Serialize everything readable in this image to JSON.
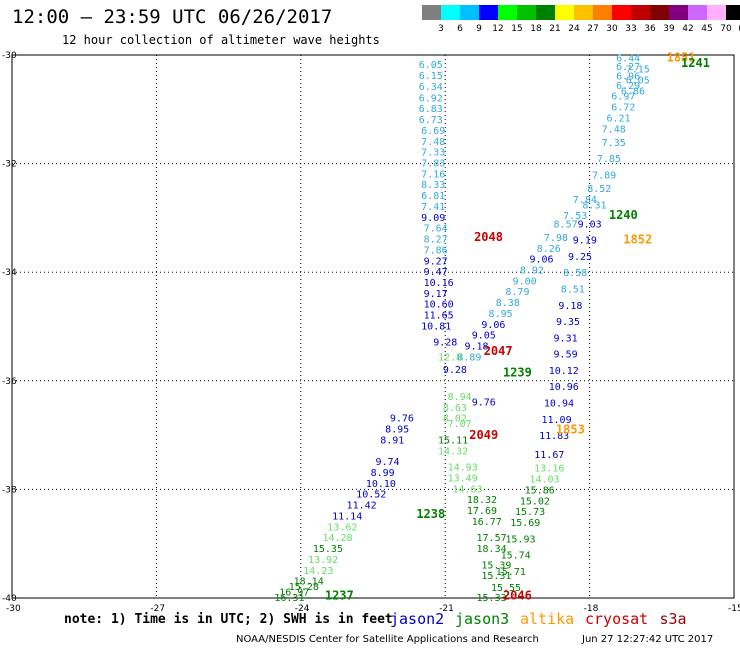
{
  "header": {
    "title": "12:00 – 23:59 UTC 06/26/2017",
    "subtitle": "12 hour collection of altimeter wave heights"
  },
  "colorbar": {
    "labels": [
      "3",
      "6",
      "9",
      "12",
      "15",
      "18",
      "21",
      "24",
      "27",
      "30",
      "33",
      "36",
      "39",
      "42",
      "45",
      "70",
      "(ft)"
    ],
    "colors": [
      "#7f7f7f",
      "#00ffff",
      "#00bfff",
      "#0000ff",
      "#00ff00",
      "#00c000",
      "#008000",
      "#ffff00",
      "#ffc000",
      "#ff8000",
      "#ff0000",
      "#c00000",
      "#800000",
      "#800080",
      "#cc66ff",
      "#ffb0ff",
      "#000000"
    ]
  },
  "note": "note: 1) Time is in UTC; 2) SWH is in feet",
  "legend": [
    {
      "name": "jason2",
      "color": "#0000cc"
    },
    {
      "name": "jason3",
      "color": "#008000"
    },
    {
      "name": "altika",
      "color": "#ff9900"
    },
    {
      "name": "cryosat",
      "color": "#cc0000"
    },
    {
      "name": "s3a",
      "color": "#990000"
    }
  ],
  "footer": {
    "credit": "NOAA/NESDIS Center for Satellite Applications and Research",
    "timestamp": "Jun 27 12:27:42 UTC 2017"
  },
  "chart_data": {
    "type": "scatter",
    "xlim": [
      -30,
      -15
    ],
    "ylim": [
      -40,
      -30
    ],
    "xticks": [
      -30,
      -27,
      -24,
      -21,
      -18,
      -15
    ],
    "yticks": [
      -30,
      -32,
      -34,
      -36,
      -38,
      -40
    ],
    "xtick_labels": [
      "-30",
      "-27",
      "-24",
      "-21",
      "-18",
      "-15"
    ],
    "ytick_labels": [
      "-30",
      "-32",
      "-34",
      "-36",
      "-38",
      "-40"
    ],
    "grid": true,
    "track_labels": [
      {
        "text": "1851",
        "x": -16.4,
        "y": -30.05,
        "color": "#ff9900"
      },
      {
        "text": "1241",
        "x": -16.1,
        "y": -30.15,
        "color": "#008000"
      },
      {
        "text": "2048",
        "x": -20.4,
        "y": -33.35,
        "color": "#cc0000"
      },
      {
        "text": "1240",
        "x": -17.6,
        "y": -32.95,
        "color": "#008000"
      },
      {
        "text": "1852",
        "x": -17.3,
        "y": -33.4,
        "color": "#ff9900"
      },
      {
        "text": "2047",
        "x": -20.2,
        "y": -35.45,
        "color": "#cc0000"
      },
      {
        "text": "1239",
        "x": -19.8,
        "y": -35.85,
        "color": "#008000"
      },
      {
        "text": "2049",
        "x": -20.5,
        "y": -37.0,
        "color": "#cc0000"
      },
      {
        "text": "1853",
        "x": -18.7,
        "y": -36.9,
        "color": "#ff9900"
      },
      {
        "text": "1238",
        "x": -21.6,
        "y": -38.45,
        "color": "#008000"
      },
      {
        "text": "1237",
        "x": -23.5,
        "y": -39.95,
        "color": "#008000"
      },
      {
        "text": "2046",
        "x": -19.8,
        "y": -39.95,
        "color": "#cc0000"
      }
    ],
    "series": [
      {
        "name": "jason2",
        "points": [
          {
            "x": -21.3,
            "y": -30.17,
            "v": "6.05",
            "c": "#33aadd"
          },
          {
            "x": -21.3,
            "y": -30.37,
            "v": "6.15",
            "c": "#33aadd"
          },
          {
            "x": -21.3,
            "y": -30.57,
            "v": "6.34",
            "c": "#33aadd"
          },
          {
            "x": -21.3,
            "y": -30.78,
            "v": "6.92",
            "c": "#33aadd"
          },
          {
            "x": -21.3,
            "y": -30.98,
            "v": "6.83",
            "c": "#33aadd"
          },
          {
            "x": -21.3,
            "y": -31.18,
            "v": "6.73",
            "c": "#33aadd"
          },
          {
            "x": -21.25,
            "y": -31.38,
            "v": "6.69",
            "c": "#33aadd"
          },
          {
            "x": -21.25,
            "y": -31.58,
            "v": "7.48",
            "c": "#33aadd"
          },
          {
            "x": -21.25,
            "y": -31.78,
            "v": "7.33",
            "c": "#33aadd"
          },
          {
            "x": -21.25,
            "y": -31.98,
            "v": "7.83",
            "c": "#33aadd"
          },
          {
            "x": -21.25,
            "y": -32.18,
            "v": "7.16",
            "c": "#33aadd"
          },
          {
            "x": -21.25,
            "y": -32.38,
            "v": "8.33",
            "c": "#33aadd"
          },
          {
            "x": -21.25,
            "y": -32.58,
            "v": "6.81",
            "c": "#33aadd"
          },
          {
            "x": -21.25,
            "y": -32.78,
            "v": "7.41",
            "c": "#33aadd"
          },
          {
            "x": -21.25,
            "y": -32.98,
            "v": "9.09",
            "c": "#0000cc"
          },
          {
            "x": -21.2,
            "y": -33.18,
            "v": "7.64",
            "c": "#33aadd"
          },
          {
            "x": -21.2,
            "y": -33.38,
            "v": "8.27",
            "c": "#33aadd"
          },
          {
            "x": -21.2,
            "y": -33.58,
            "v": "7.86",
            "c": "#33aadd"
          },
          {
            "x": -21.2,
            "y": -33.78,
            "v": "9.27",
            "c": "#0000cc"
          },
          {
            "x": -21.2,
            "y": -33.98,
            "v": "9.47",
            "c": "#0000cc"
          },
          {
            "x": -21.2,
            "y": -34.18,
            "v": "10.16",
            "c": "#0000cc"
          },
          {
            "x": -21.2,
            "y": -34.38,
            "v": "9.17",
            "c": "#0000cc"
          },
          {
            "x": -21.2,
            "y": -34.58,
            "v": "10.60",
            "c": "#0000cc"
          },
          {
            "x": -21.2,
            "y": -34.78,
            "v": "11.65",
            "c": "#0000cc"
          },
          {
            "x": -21.25,
            "y": -34.98,
            "v": "10.81",
            "c": "#0000cc"
          },
          {
            "x": -21.0,
            "y": -35.28,
            "v": "9.28",
            "c": "#0000cc"
          },
          {
            "x": -21.9,
            "y": -36.68,
            "v": "9.76",
            "c": "#0000cc"
          },
          {
            "x": -22.0,
            "y": -36.88,
            "v": "8.95",
            "c": "#0000cc"
          },
          {
            "x": -22.1,
            "y": -37.08,
            "v": "8.91",
            "c": "#0000cc"
          },
          {
            "x": -22.2,
            "y": -37.48,
            "v": "9.74",
            "c": "#0000cc"
          },
          {
            "x": -22.3,
            "y": -37.68,
            "v": "8.99",
            "c": "#0000cc"
          },
          {
            "x": -22.4,
            "y": -37.88,
            "v": "10.10",
            "c": "#0000cc"
          },
          {
            "x": -22.6,
            "y": -38.08,
            "v": "10.52",
            "c": "#0000cc"
          },
          {
            "x": -22.8,
            "y": -38.28,
            "v": "11.42",
            "c": "#0000cc"
          },
          {
            "x": -23.1,
            "y": -38.48,
            "v": "11.14",
            "c": "#0000cc"
          },
          {
            "x": -23.2,
            "y": -38.68,
            "v": "13.62",
            "c": "#66dd66"
          },
          {
            "x": -23.3,
            "y": -38.88,
            "v": "14.28",
            "c": "#66dd66"
          },
          {
            "x": -23.5,
            "y": -39.08,
            "v": "15.35",
            "c": "#008000"
          },
          {
            "x": -23.6,
            "y": -39.28,
            "v": "13.92",
            "c": "#66dd66"
          },
          {
            "x": -23.7,
            "y": -39.48,
            "v": "14.23",
            "c": "#66dd66"
          },
          {
            "x": -23.9,
            "y": -39.68,
            "v": "18.14",
            "c": "#008000"
          },
          {
            "x": -24.0,
            "y": -39.78,
            "v": "15.28",
            "c": "#008000"
          },
          {
            "x": -24.2,
            "y": -39.88,
            "v": "16.97",
            "c": "#008000"
          },
          {
            "x": -24.3,
            "y": -39.98,
            "v": "16.31",
            "c": "#008000"
          }
        ]
      },
      {
        "name": "jason3",
        "points": [
          {
            "x": -20.2,
            "y": -36.38,
            "v": "9.76",
            "c": "#0000cc"
          },
          {
            "x": -20.8,
            "y": -35.78,
            "v": "9.28",
            "c": "#0000cc"
          },
          {
            "x": -20.7,
            "y": -36.28,
            "v": "8.94",
            "c": "#66dd66"
          },
          {
            "x": -20.8,
            "y": -36.48,
            "v": "8.63",
            "c": "#66dd66"
          },
          {
            "x": -20.8,
            "y": -36.68,
            "v": "8.02",
            "c": "#66dd66"
          },
          {
            "x": -20.7,
            "y": -36.78,
            "v": "7.07",
            "c": "#66dd66"
          },
          {
            "x": -20.9,
            "y": -37.08,
            "v": "15.11",
            "c": "#008000"
          },
          {
            "x": -20.9,
            "y": -37.28,
            "v": "14.32",
            "c": "#66dd66"
          },
          {
            "x": -20.7,
            "y": -37.58,
            "v": "14.93",
            "c": "#66dd66"
          },
          {
            "x": -20.7,
            "y": -37.78,
            "v": "13.49",
            "c": "#66dd66"
          },
          {
            "x": -20.6,
            "y": -37.98,
            "v": "14.63",
            "c": "#66dd66"
          },
          {
            "x": -20.3,
            "y": -38.18,
            "v": "18.32",
            "c": "#008000"
          },
          {
            "x": -20.3,
            "y": -38.38,
            "v": "17.69",
            "c": "#008000"
          },
          {
            "x": -20.2,
            "y": -38.58,
            "v": "16.77",
            "c": "#008000"
          },
          {
            "x": -20.1,
            "y": -38.88,
            "v": "17.57",
            "c": "#008000"
          },
          {
            "x": -20.1,
            "y": -39.08,
            "v": "18.34",
            "c": "#008000"
          },
          {
            "x": -20.0,
            "y": -39.38,
            "v": "15.39",
            "c": "#008000"
          },
          {
            "x": -20.0,
            "y": -39.58,
            "v": "15.31",
            "c": "#008000"
          },
          {
            "x": -20.1,
            "y": -39.98,
            "v": "15.33",
            "c": "#008000"
          }
        ]
      },
      {
        "name": "altika",
        "points": [
          {
            "x": -17.2,
            "y": -30.05,
            "v": "6.44",
            "c": "#33aadd"
          },
          {
            "x": -17.2,
            "y": -30.2,
            "v": "6.27",
            "c": "#33aadd"
          },
          {
            "x": -17.0,
            "y": -30.25,
            "v": "7.15",
            "c": "#33aadd"
          },
          {
            "x": -17.2,
            "y": -30.38,
            "v": "6.96",
            "c": "#33aadd"
          },
          {
            "x": -17.0,
            "y": -30.45,
            "v": "6.05",
            "c": "#33aadd"
          },
          {
            "x": -17.2,
            "y": -30.55,
            "v": "6.29",
            "c": "#33aadd"
          },
          {
            "x": -17.1,
            "y": -30.65,
            "v": "6.86",
            "c": "#33aadd"
          },
          {
            "x": -17.3,
            "y": -30.75,
            "v": "6.97",
            "c": "#33aadd"
          },
          {
            "x": -17.3,
            "y": -30.95,
            "v": "6.72",
            "c": "#33aadd"
          },
          {
            "x": -17.4,
            "y": -31.15,
            "v": "6.21",
            "c": "#33aadd"
          },
          {
            "x": -17.5,
            "y": -31.35,
            "v": "7.48",
            "c": "#33aadd"
          },
          {
            "x": -17.5,
            "y": -31.6,
            "v": "7.35",
            "c": "#33aadd"
          },
          {
            "x": -17.6,
            "y": -31.9,
            "v": "7.85",
            "c": "#33aadd"
          },
          {
            "x": -17.7,
            "y": -32.2,
            "v": "7.89",
            "c": "#33aadd"
          },
          {
            "x": -17.8,
            "y": -32.45,
            "v": "8.52",
            "c": "#33aadd"
          },
          {
            "x": -17.9,
            "y": -32.75,
            "v": "8.31",
            "c": "#33aadd"
          },
          {
            "x": -18.0,
            "y": -33.1,
            "v": "9.03",
            "c": "#0000cc"
          },
          {
            "x": -18.1,
            "y": -33.4,
            "v": "9.19",
            "c": "#0000cc"
          },
          {
            "x": -18.2,
            "y": -33.7,
            "v": "9.25",
            "c": "#0000cc"
          },
          {
            "x": -18.3,
            "y": -34.0,
            "v": "8.58",
            "c": "#33aadd"
          },
          {
            "x": -18.35,
            "y": -34.3,
            "v": "8.51",
            "c": "#33aadd"
          },
          {
            "x": -18.4,
            "y": -34.6,
            "v": "9.18",
            "c": "#0000cc"
          },
          {
            "x": -18.45,
            "y": -34.9,
            "v": "9.35",
            "c": "#0000cc"
          },
          {
            "x": -18.5,
            "y": -35.2,
            "v": "9.31",
            "c": "#0000cc"
          },
          {
            "x": -18.5,
            "y": -35.5,
            "v": "9.59",
            "c": "#0000cc"
          },
          {
            "x": -18.6,
            "y": -35.8,
            "v": "10.12",
            "c": "#0000cc"
          },
          {
            "x": -18.6,
            "y": -36.1,
            "v": "10.96",
            "c": "#0000cc"
          },
          {
            "x": -18.7,
            "y": -36.4,
            "v": "10.94",
            "c": "#0000cc"
          },
          {
            "x": -18.75,
            "y": -36.7,
            "v": "11.09",
            "c": "#0000cc"
          },
          {
            "x": -18.8,
            "y": -37.0,
            "v": "11.83",
            "c": "#0000cc"
          }
        ]
      },
      {
        "name": "cryosat",
        "points": [
          {
            "x": -18.1,
            "y": -32.65,
            "v": "7.84",
            "c": "#33aadd"
          },
          {
            "x": -18.3,
            "y": -32.95,
            "v": "7.53",
            "c": "#33aadd"
          },
          {
            "x": -18.5,
            "y": -33.1,
            "v": "8.57",
            "c": "#33aadd"
          },
          {
            "x": -18.7,
            "y": -33.35,
            "v": "7.98",
            "c": "#33aadd"
          },
          {
            "x": -18.85,
            "y": -33.55,
            "v": "8.26",
            "c": "#33aadd"
          },
          {
            "x": -19.0,
            "y": -33.75,
            "v": "9.06",
            "c": "#0000cc"
          },
          {
            "x": -19.2,
            "y": -33.95,
            "v": "8.92",
            "c": "#33aadd"
          },
          {
            "x": -19.35,
            "y": -34.15,
            "v": "9.00",
            "c": "#33aadd"
          },
          {
            "x": -19.5,
            "y": -34.35,
            "v": "8.79",
            "c": "#33aadd"
          },
          {
            "x": -19.7,
            "y": -34.55,
            "v": "8.38",
            "c": "#33aadd"
          },
          {
            "x": -19.85,
            "y": -34.75,
            "v": "8.95",
            "c": "#33aadd"
          },
          {
            "x": -20.0,
            "y": -34.95,
            "v": "9.06",
            "c": "#0000cc"
          },
          {
            "x": -20.2,
            "y": -35.15,
            "v": "9.05",
            "c": "#0000cc"
          },
          {
            "x": -20.35,
            "y": -35.35,
            "v": "9.18",
            "c": "#0000cc"
          },
          {
            "x": -20.5,
            "y": -35.55,
            "v": "8.89",
            "c": "#33aadd"
          },
          {
            "x": -20.9,
            "y": -35.55,
            "v": "12.8",
            "c": "#66dd66"
          }
        ]
      },
      {
        "name": "s3a",
        "points": [
          {
            "x": -18.9,
            "y": -37.35,
            "v": "11.67",
            "c": "#0000cc"
          },
          {
            "x": -18.9,
            "y": -37.6,
            "v": "13.16",
            "c": "#66dd66"
          },
          {
            "x": -19.0,
            "y": -37.8,
            "v": "14.03",
            "c": "#66dd66"
          },
          {
            "x": -19.1,
            "y": -38.0,
            "v": "15.86",
            "c": "#008000"
          },
          {
            "x": -19.2,
            "y": -38.2,
            "v": "15.02",
            "c": "#008000"
          },
          {
            "x": -19.3,
            "y": -38.4,
            "v": "15.73",
            "c": "#008000"
          },
          {
            "x": -19.4,
            "y": -38.6,
            "v": "15.69",
            "c": "#008000"
          },
          {
            "x": -19.5,
            "y": -38.9,
            "v": "15.93",
            "c": "#008000"
          },
          {
            "x": -19.6,
            "y": -39.2,
            "v": "15.74",
            "c": "#008000"
          },
          {
            "x": -19.7,
            "y": -39.5,
            "v": "15.71",
            "c": "#008000"
          },
          {
            "x": -19.8,
            "y": -39.8,
            "v": "15.55",
            "c": "#008000"
          }
        ]
      }
    ]
  }
}
